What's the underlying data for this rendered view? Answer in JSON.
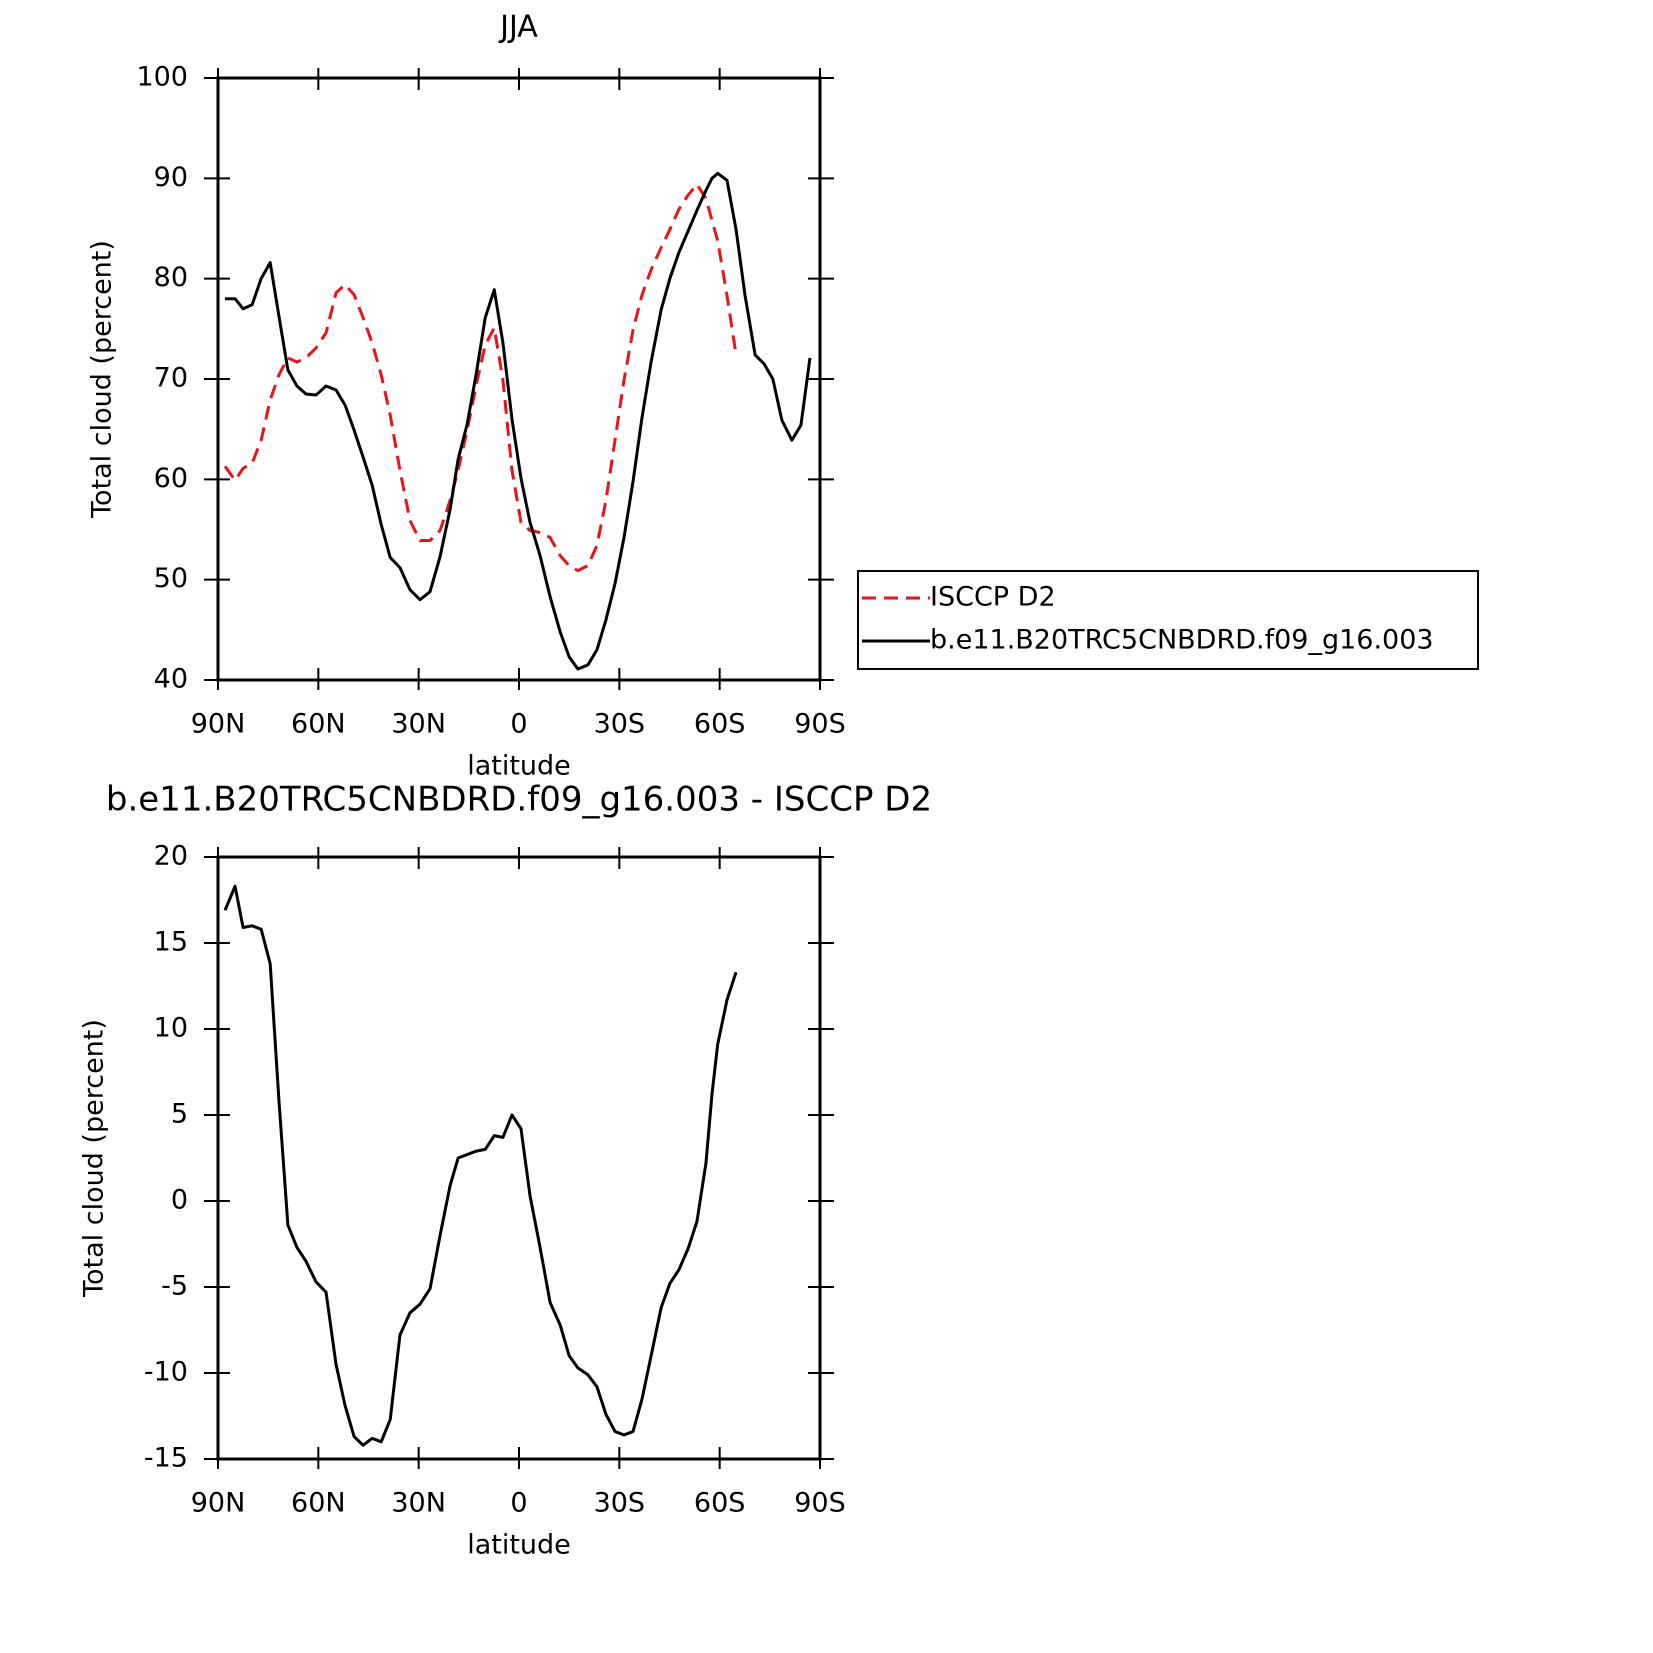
{
  "chart_data": [
    {
      "type": "line",
      "title": "JJA",
      "xlabel": "latitude",
      "ylabel": "Total cloud (percent)",
      "x": [
        87.9,
        84.9,
        82.5,
        79.8,
        77.1,
        74.4,
        71.8,
        69.1,
        66.4,
        63.7,
        60.7,
        57.7,
        54.7,
        52.0,
        49.3,
        46.6,
        43.9,
        41.2,
        38.5,
        35.6,
        32.6,
        29.6,
        26.6,
        23.6,
        20.6,
        18.2,
        15.5,
        12.8,
        10.1,
        7.4,
        4.8,
        2.1,
        -0.6,
        -3.3,
        -6.3,
        -9.3,
        -12.3,
        -15.0,
        -17.6,
        -20.6,
        -23.3,
        -26.0,
        -28.7,
        -31.4,
        -34.1,
        -36.8,
        -39.5,
        -42.5,
        -45.1,
        -47.8,
        -50.5,
        -53.2,
        -55.9,
        -57.7,
        -59.4,
        -62.2,
        -64.9,
        -67.6,
        -70.6,
        -73.3,
        -75.9,
        -78.6,
        -81.6,
        -84.3,
        -87.0
      ],
      "series": [
        {
          "name": "ISCCP D2",
          "color": "#e8141c",
          "dashed": true,
          "values": [
            61.3,
            59.9,
            61.1,
            61.6,
            63.9,
            67.9,
            70.4,
            72.1,
            71.7,
            72.1,
            73.1,
            74.6,
            78.6,
            79.4,
            78.4,
            76.1,
            73.6,
            70.4,
            66.4,
            60.9,
            55.9,
            53.9,
            53.9,
            54.9,
            57.9,
            60.9,
            64.9,
            69.4,
            73.4,
            75.1,
            69.9,
            60.9,
            55.7,
            54.9,
            54.7,
            54.2,
            52.4,
            51.4,
            50.9,
            51.4,
            53.4,
            57.9,
            63.9,
            69.9,
            74.9,
            78.4,
            80.9,
            83.1,
            84.9,
            86.9,
            88.3,
            89.4,
            88.0,
            85.8,
            83.8,
            78.3,
            72.4,
            null,
            null,
            null,
            null,
            null,
            null,
            null,
            null
          ]
        },
        {
          "name": "b.e11.B20TRC5CNBDRD.f09_g16.003",
          "color": "#000000",
          "dashed": false,
          "values": [
            78,
            78,
            77,
            77.4,
            80,
            81.6,
            76.3,
            70.9,
            69.3,
            68.5,
            68.4,
            69.3,
            68.9,
            67.4,
            64.9,
            62.2,
            59.4,
            55.5,
            52.2,
            51.2,
            49.0,
            48.0,
            48.8,
            52.3,
            57,
            62,
            65.5,
            70.5,
            76.1,
            78.9,
            73.6,
            66,
            60.1,
            55.7,
            52.4,
            48.3,
            44.8,
            42.3,
            41.1,
            41.5,
            43,
            46,
            49.6,
            54.2,
            59.8,
            66.2,
            71.7,
            76.9,
            80,
            82.6,
            84.7,
            86.8,
            88.8,
            90,
            90.5,
            89.8,
            84.9,
            78.3,
            72.4,
            71.5,
            70,
            65.9,
            63.9,
            65.4,
            72.1
          ]
        }
      ],
      "xlim": [
        90,
        -90
      ],
      "xticks": [
        {
          "value": 90,
          "label": "90N"
        },
        {
          "value": 60,
          "label": "60N"
        },
        {
          "value": 30,
          "label": "30N"
        },
        0,
        {
          "value": -30,
          "label": "30S"
        },
        {
          "value": -60,
          "label": "60S"
        },
        {
          "value": -90,
          "label": "90S"
        }
      ],
      "ylim": [
        40,
        100
      ],
      "yticks": [
        40,
        50,
        60,
        70,
        80,
        90,
        100
      ],
      "legend": "right"
    },
    {
      "type": "line",
      "title": "b.e11.B20TRC5CNBDRD.f09_g16.003 - ISCCP D2",
      "xlabel": "latitude",
      "ylabel": "Total cloud (percent)",
      "x": [
        87.9,
        84.9,
        82.5,
        79.8,
        77.1,
        74.4,
        71.8,
        69.1,
        66.4,
        63.7,
        60.7,
        57.7,
        54.7,
        52.0,
        49.3,
        46.6,
        43.9,
        41.2,
        38.5,
        35.6,
        32.6,
        29.6,
        26.6,
        23.6,
        20.6,
        18.2,
        15.5,
        12.8,
        10.1,
        7.4,
        4.8,
        2.1,
        -0.6,
        -3.3,
        -6.3,
        -9.3,
        -12.3,
        -15.0,
        -17.6,
        -20.6,
        -23.3,
        -26.0,
        -28.7,
        -31.4,
        -34.1,
        -36.8,
        -39.5,
        -42.5,
        -45.1,
        -47.8,
        -50.5,
        -53.2,
        -55.9,
        -57.7,
        -59.4,
        -62.2,
        -64.9
      ],
      "values": [
        16.9,
        18.3,
        15.9,
        16.0,
        15.8,
        13.8,
        5.9,
        -1.4,
        -2.7,
        -3.5,
        -4.7,
        -5.3,
        -9.5,
        -11.9,
        -13.7,
        -14.2,
        -13.8,
        -14.0,
        -12.7,
        -7.8,
        -6.5,
        -6.0,
        -5.1,
        -2.0,
        0.9,
        2.5,
        2.7,
        2.9,
        3.0,
        3.8,
        3.7,
        5.0,
        4.2,
        0.3,
        -2.7,
        -5.9,
        -7.2,
        -9.0,
        -9.7,
        -10.1,
        -10.8,
        -12.4,
        -13.4,
        -13.6,
        -13.4,
        -11.5,
        -9.0,
        -6.2,
        -4.8,
        -4.0,
        -2.8,
        -1.2,
        2.2,
        6.2,
        9.1,
        11.7,
        13.3
      ],
      "color": "#000000",
      "xlim": [
        90,
        -90
      ],
      "xticks": [
        {
          "value": 90,
          "label": "90N"
        },
        {
          "value": 60,
          "label": "60N"
        },
        {
          "value": 30,
          "label": "30N"
        },
        0,
        {
          "value": -30,
          "label": "30S"
        },
        {
          "value": -60,
          "label": "60S"
        },
        {
          "value": -90,
          "label": "90S"
        }
      ],
      "ylim": [
        -15,
        20
      ],
      "yticks": [
        -15,
        -10,
        -5,
        0,
        5,
        10,
        15,
        20
      ]
    }
  ]
}
